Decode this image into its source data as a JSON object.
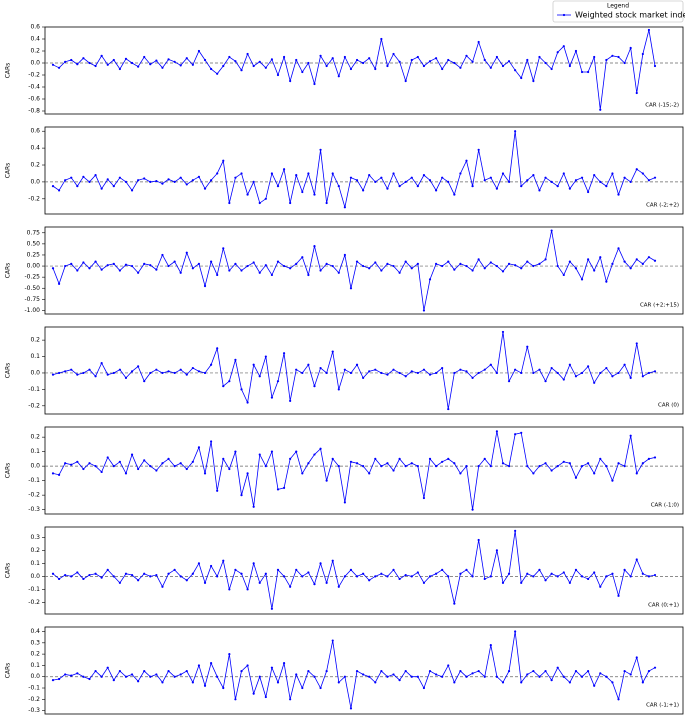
{
  "chart_data": [
    {
      "type": "line",
      "ylabel": "CARs",
      "annotation": "CAR (-15;-2)",
      "legend_title": "Legend",
      "legend": "upper right",
      "series": [
        {
          "name": "Weighted stock market index",
          "color": "#0000ff",
          "values": [
            -0.03,
            -0.08,
            0.02,
            0.05,
            -0.02,
            0.08,
            0.0,
            -0.05,
            0.12,
            -0.03,
            0.05,
            -0.1,
            0.07,
            0.0,
            -0.06,
            0.1,
            -0.02,
            0.04,
            -0.08,
            0.06,
            0.02,
            -0.04,
            0.08,
            -0.03,
            0.2,
            0.05,
            -0.1,
            -0.18,
            -0.05,
            0.1,
            0.03,
            -0.12,
            0.15,
            -0.05,
            0.02,
            -0.08,
            0.06,
            -0.2,
            0.1,
            -0.3,
            0.05,
            -0.15,
            0.0,
            -0.35,
            0.12,
            -0.05,
            0.08,
            -0.22,
            0.1,
            -0.1,
            0.05,
            0.0,
            0.08,
            -0.1,
            0.4,
            -0.05,
            0.15,
            0.02,
            -0.3,
            0.05,
            0.1,
            -0.05,
            0.03,
            0.08,
            -0.1,
            0.05,
            0.0,
            -0.08,
            0.12,
            0.02,
            0.35,
            0.05,
            -0.08,
            0.1,
            -0.05,
            0.03,
            -0.12,
            -0.25,
            0.05,
            -0.3,
            0.1,
            0.0,
            -0.1,
            0.18,
            0.28,
            -0.05,
            0.2,
            -0.15,
            -0.15,
            0.1,
            -0.78,
            0.05,
            0.12,
            0.1,
            0.0,
            0.25,
            -0.5,
            0.15,
            0.55,
            -0.05
          ]
        }
      ],
      "ylim": [
        -0.85,
        0.6
      ],
      "yticks": [
        -0.8,
        -0.6,
        -0.4,
        -0.2,
        {
          "value": 0,
          "label": "0.0"
        },
        0.2,
        0.4,
        0.6
      ]
    },
    {
      "type": "line",
      "ylabel": "CARs",
      "annotation": "CAR (-2;+2)",
      "series": [
        {
          "color": "#0000ff",
          "values": [
            -0.05,
            -0.1,
            0.02,
            0.05,
            -0.05,
            0.06,
            0.0,
            0.08,
            -0.08,
            0.03,
            -0.05,
            0.05,
            0.0,
            -0.1,
            0.02,
            0.04,
            0.0,
            0.01,
            -0.02,
            0.03,
            0.0,
            0.05,
            -0.03,
            0.02,
            0.06,
            -0.08,
            0.02,
            0.1,
            0.25,
            -0.25,
            0.05,
            0.1,
            -0.15,
            0.0,
            -0.25,
            -0.2,
            0.1,
            -0.05,
            0.15,
            -0.25,
            0.08,
            -0.12,
            0.1,
            -0.15,
            0.38,
            -0.25,
            0.1,
            -0.05,
            -0.3,
            0.05,
            0.02,
            -0.1,
            0.08,
            0.0,
            0.05,
            -0.08,
            0.1,
            -0.05,
            0.0,
            0.05,
            -0.05,
            0.08,
            0.02,
            -0.1,
            0.05,
            0.0,
            -0.15,
            0.1,
            0.25,
            -0.05,
            0.38,
            0.02,
            0.05,
            -0.08,
            0.1,
            0.0,
            0.6,
            -0.05,
            0.02,
            0.08,
            -0.1,
            0.05,
            0.0,
            -0.05,
            0.1,
            -0.08,
            0.02,
            0.05,
            -0.12,
            0.08,
            0.0,
            -0.05,
            0.1,
            -0.15,
            0.05,
            0.0,
            0.15,
            0.1,
            0.02,
            0.05
          ]
        }
      ],
      "ylim": [
        -0.38,
        0.65
      ],
      "yticks": [
        -0.2,
        {
          "value": 0,
          "label": "0.0"
        },
        0.2,
        0.4,
        0.6
      ]
    },
    {
      "type": "line",
      "ylabel": "CARs",
      "annotation": "CAR (+2;+15)",
      "series": [
        {
          "color": "#0000ff",
          "values": [
            -0.05,
            -0.4,
            0.0,
            0.05,
            -0.1,
            0.08,
            -0.05,
            0.1,
            -0.08,
            0.02,
            0.05,
            -0.1,
            0.03,
            0.0,
            -0.15,
            0.05,
            0.02,
            -0.08,
            0.25,
            0.0,
            0.1,
            -0.15,
            0.3,
            -0.05,
            0.05,
            -0.45,
            0.1,
            -0.2,
            0.4,
            -0.1,
            0.05,
            -0.1,
            0.0,
            0.08,
            -0.15,
            0.02,
            -0.2,
            0.1,
            0.0,
            -0.05,
            0.05,
            0.2,
            -0.2,
            0.45,
            -0.1,
            0.05,
            0.0,
            -0.15,
            0.25,
            -0.5,
            0.1,
            0.0,
            -0.05,
            0.08,
            -0.1,
            0.05,
            0.0,
            -0.15,
            0.1,
            -0.05,
            0.05,
            -1.0,
            -0.3,
            0.05,
            0.0,
            0.1,
            -0.08,
            0.05,
            0.0,
            -0.1,
            0.15,
            -0.05,
            0.08,
            0.0,
            -0.12,
            0.05,
            0.02,
            -0.05,
            0.1,
            0.0,
            0.05,
            0.15,
            0.8,
            0.0,
            -0.2,
            0.1,
            -0.05,
            -0.3,
            0.15,
            -0.1,
            0.2,
            -0.35,
            0.05,
            0.4,
            0.1,
            -0.05,
            0.15,
            0.05,
            0.2,
            0.12
          ]
        }
      ],
      "ylim": [
        -1.08,
        0.88
      ],
      "yticks": [
        {
          "value": -1,
          "label": "-1.00"
        },
        -0.75,
        {
          "value": -0.5,
          "label": "-0.50"
        },
        -0.25,
        {
          "value": 0,
          "label": "0.00"
        },
        0.25,
        {
          "value": 0.5,
          "label": "0.50"
        },
        0.75
      ]
    },
    {
      "type": "line",
      "ylabel": "CARs",
      "annotation": "CAR (0)",
      "series": [
        {
          "color": "#0000ff",
          "values": [
            -0.01,
            0.0,
            0.01,
            0.02,
            -0.01,
            0.0,
            0.02,
            -0.02,
            0.06,
            -0.01,
            0.0,
            0.02,
            -0.03,
            0.01,
            0.04,
            -0.05,
            0.0,
            0.02,
            0.0,
            0.01,
            0.0,
            0.02,
            -0.01,
            0.03,
            0.01,
            0.0,
            0.05,
            0.15,
            -0.08,
            -0.05,
            0.08,
            -0.1,
            -0.18,
            0.05,
            -0.02,
            0.1,
            -0.15,
            -0.05,
            0.12,
            -0.17,
            0.02,
            0.0,
            0.05,
            -0.08,
            0.03,
            0.0,
            0.13,
            -0.1,
            0.02,
            0.0,
            0.05,
            -0.03,
            0.01,
            0.02,
            0.0,
            -0.01,
            0.02,
            0.0,
            -0.02,
            0.01,
            0.0,
            0.02,
            -0.01,
            0.0,
            0.03,
            -0.22,
            0.0,
            0.02,
            0.01,
            -0.03,
            0.0,
            0.02,
            0.05,
            0.0,
            0.25,
            -0.05,
            0.02,
            0.0,
            0.16,
            0.0,
            0.02,
            -0.05,
            0.03,
            0.0,
            -0.04,
            0.05,
            -0.02,
            0.0,
            0.04,
            -0.06,
            0.0,
            0.03,
            -0.02,
            0.0,
            0.05,
            -0.03,
            0.18,
            -0.02,
            0.0,
            0.01
          ]
        }
      ],
      "ylim": [
        -0.25,
        0.28
      ],
      "yticks": [
        -0.2,
        -0.1,
        {
          "value": 0,
          "label": "0.0"
        },
        0.1,
        0.2
      ]
    },
    {
      "type": "line",
      "ylabel": "CARs",
      "annotation": "CAR (-1;0)",
      "series": [
        {
          "color": "#0000ff",
          "values": [
            -0.05,
            -0.06,
            0.02,
            0.01,
            0.03,
            -0.02,
            0.02,
            0.0,
            -0.04,
            0.06,
            0.0,
            0.03,
            -0.05,
            0.08,
            -0.02,
            0.04,
            0.0,
            -0.03,
            0.02,
            0.05,
            0.0,
            0.02,
            -0.02,
            0.03,
            0.13,
            -0.05,
            0.17,
            -0.17,
            0.05,
            -0.02,
            0.1,
            -0.2,
            -0.05,
            -0.28,
            0.08,
            0.0,
            0.1,
            -0.16,
            -0.15,
            0.05,
            0.1,
            -0.05,
            0.02,
            0.08,
            0.12,
            -0.1,
            0.05,
            0.0,
            -0.25,
            0.03,
            0.02,
            0.0,
            -0.05,
            0.05,
            0.0,
            0.02,
            -0.03,
            0.05,
            0.0,
            0.02,
            0.0,
            -0.22,
            0.05,
            0.0,
            0.03,
            0.05,
            0.02,
            -0.05,
            0.0,
            -0.3,
            0.0,
            0.05,
            0.0,
            0.24,
            0.02,
            0.0,
            0.22,
            0.23,
            0.0,
            -0.05,
            0.0,
            0.02,
            -0.03,
            0.0,
            0.03,
            0.02,
            -0.08,
            0.0,
            0.02,
            -0.05,
            0.05,
            0.0,
            -0.1,
            0.02,
            0.0,
            0.21,
            -0.05,
            0.02,
            0.05,
            0.06
          ]
        }
      ],
      "ylim": [
        -0.33,
        0.27
      ],
      "yticks": [
        -0.3,
        -0.2,
        -0.1,
        {
          "value": 0,
          "label": "0.0"
        },
        0.1,
        0.2
      ]
    },
    {
      "type": "line",
      "ylabel": "CARs",
      "annotation": "CAR (0;+1)",
      "series": [
        {
          "color": "#0000ff",
          "values": [
            0.02,
            -0.02,
            0.01,
            0.0,
            0.03,
            -0.02,
            0.01,
            0.02,
            -0.01,
            0.05,
            0.0,
            -0.05,
            0.02,
            0.01,
            -0.03,
            0.02,
            0.0,
            0.01,
            -0.08,
            0.02,
            0.05,
            0.0,
            -0.03,
            0.02,
            0.1,
            -0.05,
            0.08,
            0.0,
            0.12,
            -0.1,
            0.05,
            0.02,
            -0.1,
            0.1,
            -0.05,
            0.02,
            -0.25,
            0.05,
            0.0,
            -0.08,
            0.05,
            0.0,
            0.03,
            -0.06,
            0.1,
            -0.05,
            0.12,
            -0.08,
            0.0,
            0.05,
            0.0,
            0.02,
            -0.03,
            0.0,
            0.02,
            0.0,
            0.05,
            -0.02,
            0.01,
            0.0,
            0.03,
            -0.05,
            0.0,
            0.02,
            0.05,
            0.0,
            -0.21,
            0.02,
            0.05,
            0.0,
            0.28,
            -0.02,
            0.0,
            0.2,
            -0.05,
            0.02,
            0.35,
            -0.05,
            0.02,
            0.0,
            0.05,
            -0.03,
            0.02,
            0.0,
            0.03,
            -0.05,
            0.05,
            0.0,
            -0.02,
            0.03,
            -0.08,
            0.0,
            0.02,
            -0.15,
            0.05,
            0.0,
            0.13,
            0.02,
            0.0,
            0.01
          ]
        }
      ],
      "ylim": [
        -0.29,
        0.38
      ],
      "yticks": [
        -0.2,
        -0.1,
        {
          "value": 0,
          "label": "0.0"
        },
        0.1,
        0.2,
        0.3
      ]
    },
    {
      "type": "line",
      "ylabel": "CARs",
      "annotation": "CAR (-1;+1)",
      "series": [
        {
          "color": "#0000ff",
          "values": [
            -0.03,
            -0.02,
            0.02,
            0.01,
            0.03,
            0.0,
            -0.02,
            0.05,
            0.0,
            0.08,
            -0.03,
            0.05,
            0.0,
            0.02,
            -0.04,
            0.05,
            0.0,
            0.02,
            -0.05,
            0.05,
            0.0,
            0.02,
            0.05,
            -0.05,
            0.1,
            -0.08,
            0.12,
            0.0,
            -0.1,
            0.2,
            -0.2,
            0.05,
            0.1,
            -0.15,
            0.0,
            -0.18,
            0.08,
            -0.05,
            0.12,
            -0.2,
            0.02,
            -0.1,
            0.05,
            0.0,
            -0.1,
            0.05,
            0.32,
            -0.05,
            0.0,
            -0.28,
            0.05,
            0.02,
            0.0,
            -0.05,
            0.05,
            0.0,
            0.02,
            -0.03,
            0.05,
            0.0,
            0.0,
            -0.1,
            0.05,
            0.02,
            0.0,
            0.1,
            -0.05,
            0.05,
            0.0,
            0.03,
            0.05,
            0.0,
            0.28,
            0.0,
            -0.05,
            0.05,
            0.4,
            -0.05,
            0.02,
            0.05,
            0.0,
            0.05,
            -0.03,
            0.08,
            0.0,
            -0.05,
            0.05,
            0.0,
            0.05,
            -0.08,
            0.03,
            0.0,
            -0.05,
            -0.2,
            0.05,
            0.02,
            0.17,
            -0.05,
            0.05,
            0.08
          ]
        }
      ],
      "ylim": [
        -0.33,
        0.44
      ],
      "yticks": [
        -0.3,
        -0.2,
        -0.1,
        {
          "value": 0,
          "label": "0.0"
        },
        0.1,
        0.2,
        0.3,
        0.4
      ]
    }
  ]
}
